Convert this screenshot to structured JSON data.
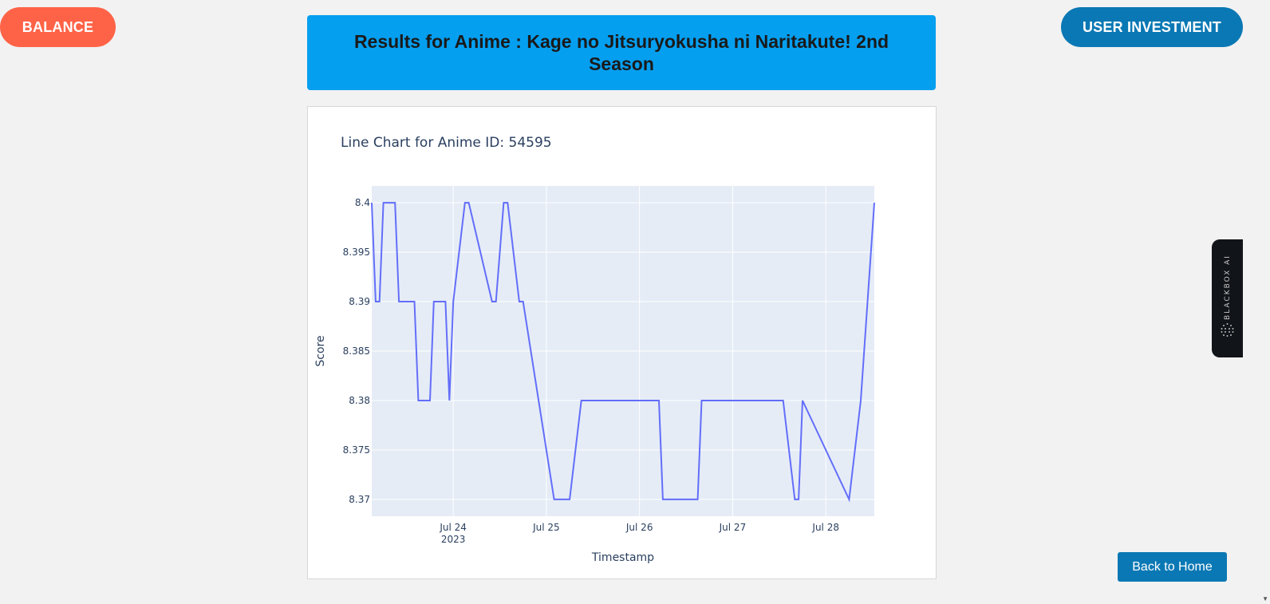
{
  "colors": {
    "balance_bg": "#ff6347",
    "invest_bg": "#0a78b4",
    "banner_bg": "#059ff0",
    "back_bg": "#0a78b4",
    "plot_bg": "#e5ecf6",
    "line": "#636efa"
  },
  "header": {
    "balance_label": "BALANCE",
    "invest_label": "USER INVESTMENT",
    "title": "Results for Anime : Kage no Jitsuryokusha ni Naritakute! 2nd Season"
  },
  "side_widget": {
    "label": "BLACKBOX AI",
    "icon": "dots-sphere-icon"
  },
  "footer": {
    "back_label": "Back to Home"
  },
  "chart_data": {
    "type": "line",
    "title": "Line Chart for Anime ID: 54595",
    "xlabel": "Timestamp",
    "ylabel": "Score",
    "x_range": [
      "2023-07-23 03:00",
      "2023-07-28 12:30"
    ],
    "ylim": [
      8.3683,
      8.4017
    ],
    "x_ticks": [
      {
        "label": "Jul 24",
        "sub": "2023",
        "value": "2023-07-24"
      },
      {
        "label": "Jul 25",
        "sub": "",
        "value": "2023-07-25"
      },
      {
        "label": "Jul 26",
        "sub": "",
        "value": "2023-07-26"
      },
      {
        "label": "Jul 27",
        "sub": "",
        "value": "2023-07-27"
      },
      {
        "label": "Jul 28",
        "sub": "",
        "value": "2023-07-28"
      }
    ],
    "y_ticks": [
      "8.37",
      "8.375",
      "8.38",
      "8.385",
      "8.39",
      "8.395",
      "8.4"
    ],
    "grid": true,
    "series": [
      {
        "x": [
          "2023-07-23 03:00",
          "2023-07-23 04:00",
          "2023-07-23 05:00",
          "2023-07-23 06:00",
          "2023-07-23 09:00",
          "2023-07-23 10:00",
          "2023-07-23 14:00",
          "2023-07-23 15:00",
          "2023-07-23 18:00",
          "2023-07-23 19:00",
          "2023-07-23 22:00",
          "2023-07-23 23:00",
          "2023-07-24 00:00",
          "2023-07-24 03:00",
          "2023-07-24 04:00",
          "2023-07-24 10:00",
          "2023-07-24 11:00",
          "2023-07-24 13:00",
          "2023-07-24 14:00",
          "2023-07-24 17:00",
          "2023-07-24 18:00",
          "2023-07-25 02:00",
          "2023-07-25 06:00",
          "2023-07-25 09:00",
          "2023-07-26 05:00",
          "2023-07-26 06:00",
          "2023-07-26 15:00",
          "2023-07-26 16:00",
          "2023-07-27 13:00",
          "2023-07-27 16:00",
          "2023-07-27 17:00",
          "2023-07-27 18:00",
          "2023-07-28 06:00",
          "2023-07-28 09:00",
          "2023-07-28 12:30"
        ],
        "y": [
          8.4,
          8.39,
          8.39,
          8.4,
          8.4,
          8.39,
          8.39,
          8.38,
          8.38,
          8.39,
          8.39,
          8.38,
          8.39,
          8.4,
          8.4,
          8.39,
          8.39,
          8.4,
          8.4,
          8.39,
          8.39,
          8.37,
          8.37,
          8.38,
          8.38,
          8.37,
          8.37,
          8.38,
          8.38,
          8.37,
          8.37,
          8.38,
          8.37,
          8.38,
          8.4
        ]
      }
    ]
  }
}
